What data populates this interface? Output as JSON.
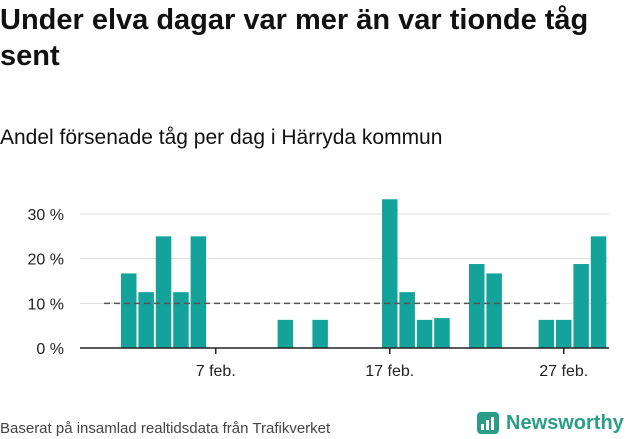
{
  "header": {
    "title": "Under elva dagar var mer än var tionde tåg sent",
    "subtitle": "Andel försenade tåg per dag i Härryda kommun"
  },
  "footer": {
    "source": "Baserat på insamlad realtidsdata från Trafikverket",
    "brand": "Newsworthy"
  },
  "colors": {
    "bar": "#14a39a",
    "brand": "#2b9d86",
    "grid": "#dddddd",
    "reference": "#555555"
  },
  "chart_data": {
    "type": "bar",
    "unit": "%",
    "ylim": [
      0,
      30
    ],
    "yticks": [
      "0 %",
      "10 %",
      "20 %",
      "30 %"
    ],
    "ytick_values": [
      0,
      10,
      20,
      30
    ],
    "xticks": [
      {
        "label": "7 feb.",
        "index": 5
      },
      {
        "label": "17 feb.",
        "index": 15
      },
      {
        "label": "27 feb.",
        "index": 25
      }
    ],
    "values": [
      16.7,
      12.5,
      25,
      12.5,
      25,
      0,
      0,
      0,
      0,
      6.3,
      0,
      6.3,
      0,
      0,
      0,
      33.3,
      12.5,
      6.3,
      6.7,
      0,
      18.8,
      16.7,
      0,
      0,
      6.3,
      6.3,
      18.8,
      25
    ],
    "reference_line": 10,
    "grid": true,
    "legend": "none"
  }
}
